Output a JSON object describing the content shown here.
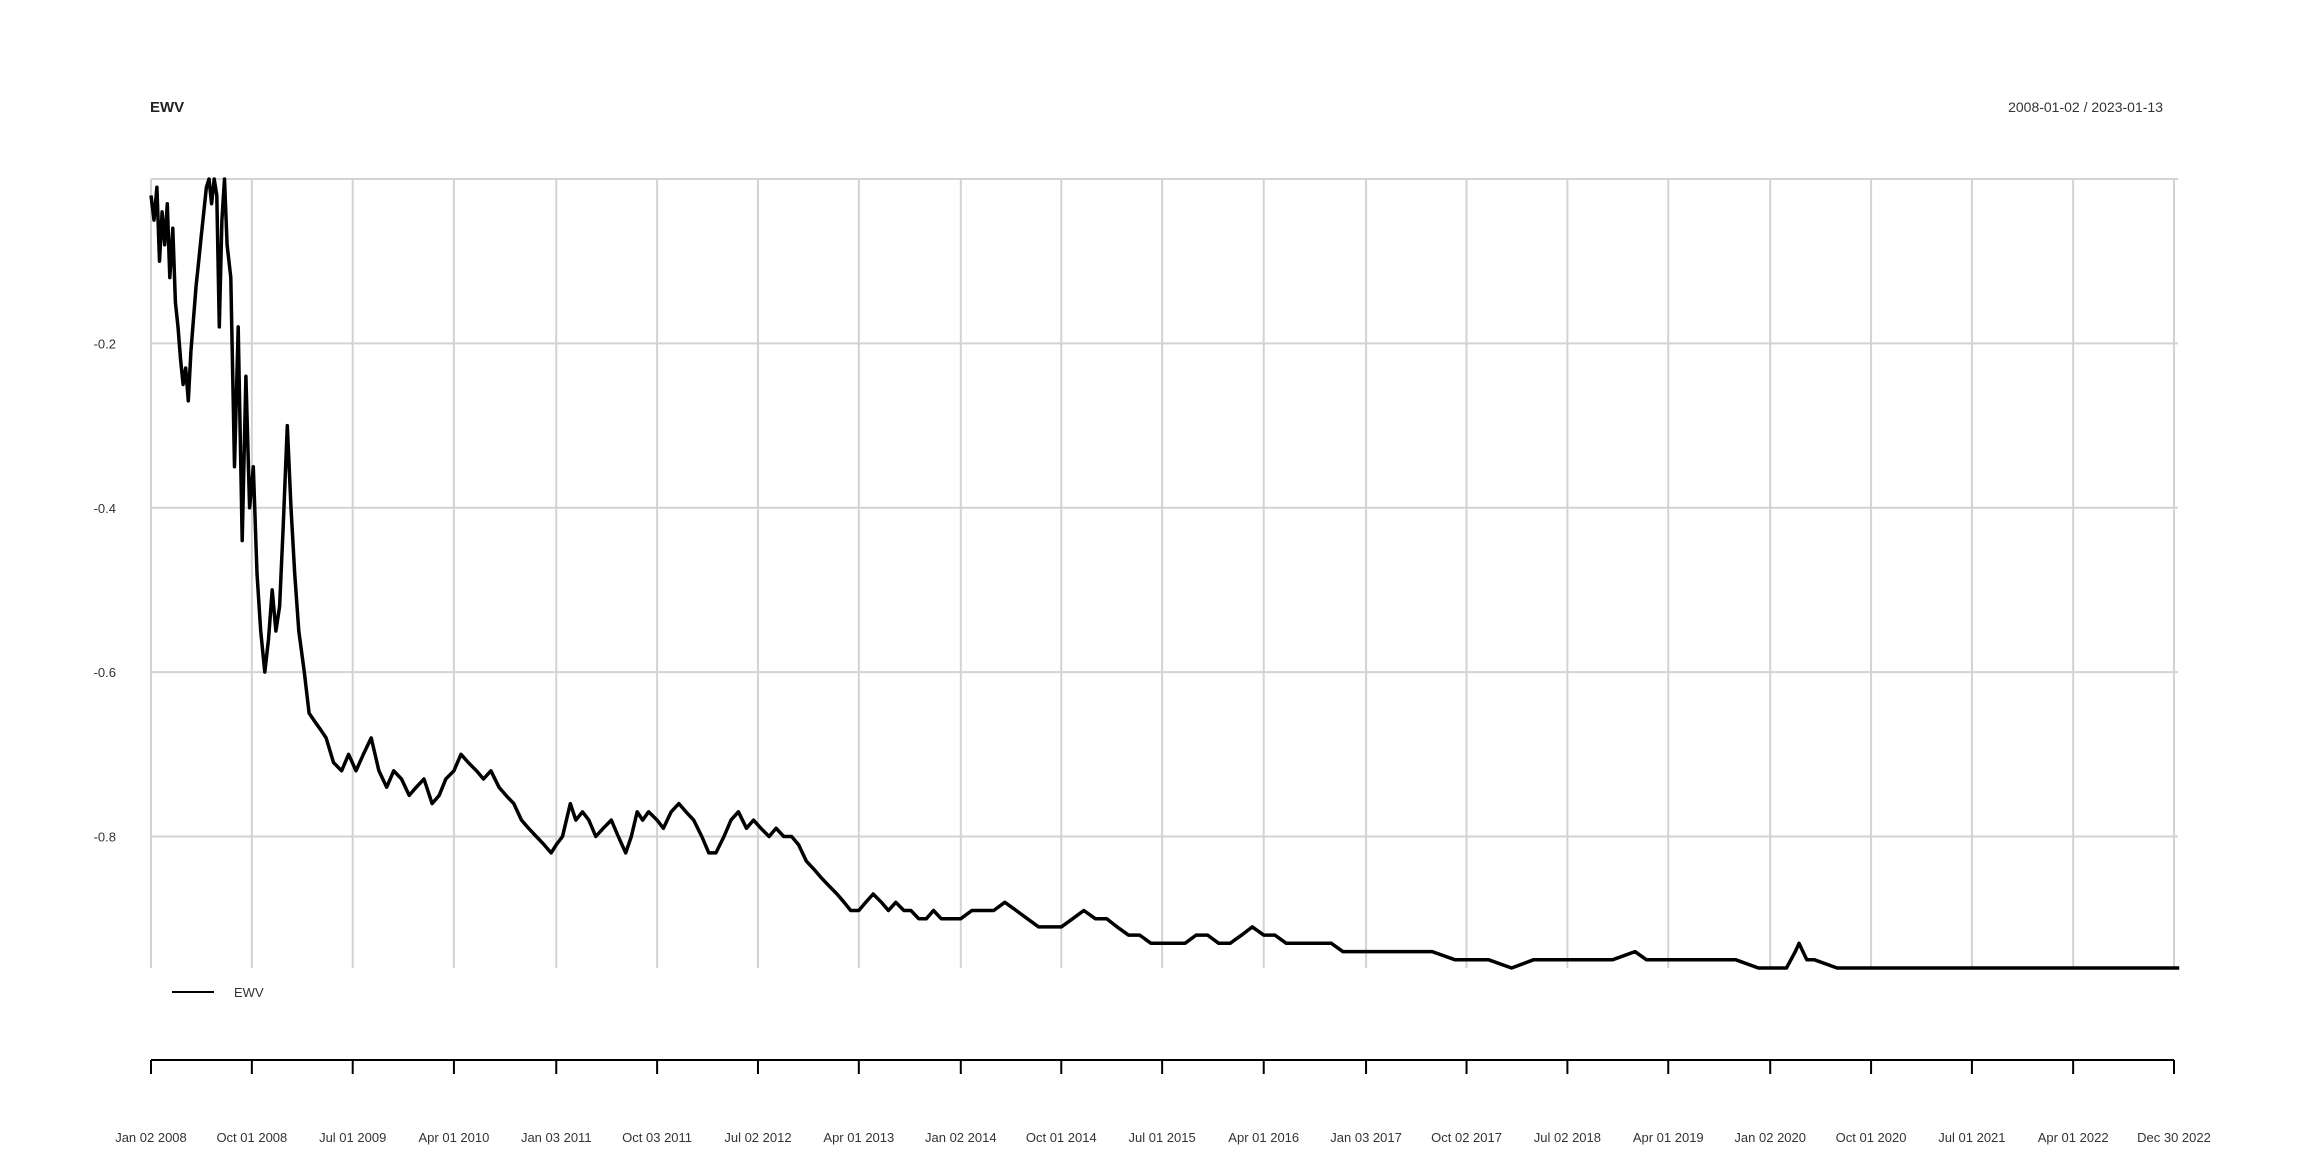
{
  "chart_data": {
    "type": "line",
    "title": "EWV",
    "date_range": "2008-01-02 / 2023-01-13",
    "x_type": "date",
    "x_ticks": [
      {
        "date": "2008-01-02",
        "label": "Jan 02 2008"
      },
      {
        "date": "2008-10-01",
        "label": "Oct 01 2008"
      },
      {
        "date": "2009-07-01",
        "label": "Jul 01 2009"
      },
      {
        "date": "2010-04-01",
        "label": "Apr 01 2010"
      },
      {
        "date": "2011-01-03",
        "label": "Jan 03 2011"
      },
      {
        "date": "2011-10-03",
        "label": "Oct 03 2011"
      },
      {
        "date": "2012-07-02",
        "label": "Jul 02 2012"
      },
      {
        "date": "2013-04-01",
        "label": "Apr 01 2013"
      },
      {
        "date": "2014-01-02",
        "label": "Jan 02 2014"
      },
      {
        "date": "2014-10-01",
        "label": "Oct 01 2014"
      },
      {
        "date": "2015-07-01",
        "label": "Jul 01 2015"
      },
      {
        "date": "2016-04-01",
        "label": "Apr 01 2016"
      },
      {
        "date": "2017-01-03",
        "label": "Jan 03 2017"
      },
      {
        "date": "2017-10-02",
        "label": "Oct 02 2017"
      },
      {
        "date": "2018-07-02",
        "label": "Jul 02 2018"
      },
      {
        "date": "2019-04-01",
        "label": "Apr 01 2019"
      },
      {
        "date": "2020-01-02",
        "label": "Jan 02 2020"
      },
      {
        "date": "2020-10-01",
        "label": "Oct 01 2020"
      },
      {
        "date": "2021-07-01",
        "label": "Jul 01 2021"
      },
      {
        "date": "2022-04-01",
        "label": "Apr 01 2022"
      },
      {
        "date": "2022-12-30",
        "label": "Dec 30 2022"
      }
    ],
    "y_ticks": [
      -0.2,
      -0.4,
      -0.6,
      -0.8
    ],
    "y_tick_labels": [
      "-0.2",
      "-0.4",
      "-0.6",
      "-0.8"
    ],
    "ylim": [
      -0.96,
      0.0
    ],
    "grid": true,
    "legend_position": "bottom-left",
    "series": [
      {
        "name": "EWV",
        "color": "#000000",
        "points": [
          [
            "2008-01-02",
            -0.02
          ],
          [
            "2008-01-10",
            -0.05
          ],
          [
            "2008-01-18",
            -0.01
          ],
          [
            "2008-01-25",
            -0.1
          ],
          [
            "2008-02-01",
            -0.04
          ],
          [
            "2008-02-08",
            -0.08
          ],
          [
            "2008-02-15",
            -0.03
          ],
          [
            "2008-02-22",
            -0.12
          ],
          [
            "2008-03-01",
            -0.06
          ],
          [
            "2008-03-08",
            -0.15
          ],
          [
            "2008-03-15",
            -0.18
          ],
          [
            "2008-03-22",
            -0.22
          ],
          [
            "2008-03-29",
            -0.25
          ],
          [
            "2008-04-05",
            -0.23
          ],
          [
            "2008-04-12",
            -0.27
          ],
          [
            "2008-04-19",
            -0.21
          ],
          [
            "2008-04-26",
            -0.17
          ],
          [
            "2008-05-03",
            -0.13
          ],
          [
            "2008-05-10",
            -0.1
          ],
          [
            "2008-05-17",
            -0.07
          ],
          [
            "2008-05-24",
            -0.04
          ],
          [
            "2008-05-31",
            -0.01
          ],
          [
            "2008-06-07",
            0.0
          ],
          [
            "2008-06-14",
            -0.03
          ],
          [
            "2008-06-21",
            0.0
          ],
          [
            "2008-06-28",
            -0.02
          ],
          [
            "2008-07-05",
            -0.18
          ],
          [
            "2008-07-12",
            -0.05
          ],
          [
            "2008-07-19",
            0.0
          ],
          [
            "2008-07-26",
            -0.08
          ],
          [
            "2008-08-05",
            -0.12
          ],
          [
            "2008-08-15",
            -0.35
          ],
          [
            "2008-08-25",
            -0.18
          ],
          [
            "2008-09-05",
            -0.44
          ],
          [
            "2008-09-15",
            -0.24
          ],
          [
            "2008-09-25",
            -0.4
          ],
          [
            "2008-10-05",
            -0.35
          ],
          [
            "2008-10-15",
            -0.48
          ],
          [
            "2008-10-25",
            -0.55
          ],
          [
            "2008-11-05",
            -0.6
          ],
          [
            "2008-11-15",
            -0.56
          ],
          [
            "2008-11-25",
            -0.5
          ],
          [
            "2008-12-05",
            -0.55
          ],
          [
            "2008-12-15",
            -0.52
          ],
          [
            "2008-12-25",
            -0.42
          ],
          [
            "2009-01-05",
            -0.3
          ],
          [
            "2009-01-15",
            -0.4
          ],
          [
            "2009-01-25",
            -0.48
          ],
          [
            "2009-02-05",
            -0.55
          ],
          [
            "2009-02-20",
            -0.6
          ],
          [
            "2009-03-05",
            -0.65
          ],
          [
            "2009-03-20",
            -0.66
          ],
          [
            "2009-04-05",
            -0.67
          ],
          [
            "2009-04-20",
            -0.68
          ],
          [
            "2009-05-10",
            -0.71
          ],
          [
            "2009-06-01",
            -0.72
          ],
          [
            "2009-06-20",
            -0.7
          ],
          [
            "2009-07-10",
            -0.72
          ],
          [
            "2009-07-30",
            -0.7
          ],
          [
            "2009-08-20",
            -0.68
          ],
          [
            "2009-09-10",
            -0.72
          ],
          [
            "2009-10-01",
            -0.74
          ],
          [
            "2009-10-20",
            -0.72
          ],
          [
            "2009-11-10",
            -0.73
          ],
          [
            "2009-12-01",
            -0.75
          ],
          [
            "2009-12-20",
            -0.74
          ],
          [
            "2010-01-10",
            -0.73
          ],
          [
            "2010-02-01",
            -0.76
          ],
          [
            "2010-02-20",
            -0.75
          ],
          [
            "2010-03-10",
            -0.73
          ],
          [
            "2010-04-01",
            -0.72
          ],
          [
            "2010-04-20",
            -0.7
          ],
          [
            "2010-05-10",
            -0.71
          ],
          [
            "2010-06-01",
            -0.72
          ],
          [
            "2010-06-20",
            -0.73
          ],
          [
            "2010-07-10",
            -0.72
          ],
          [
            "2010-08-01",
            -0.74
          ],
          [
            "2010-08-20",
            -0.75
          ],
          [
            "2010-09-10",
            -0.76
          ],
          [
            "2010-10-01",
            -0.78
          ],
          [
            "2010-10-20",
            -0.79
          ],
          [
            "2010-11-10",
            -0.8
          ],
          [
            "2010-12-01",
            -0.81
          ],
          [
            "2010-12-20",
            -0.82
          ],
          [
            "2011-01-03",
            -0.81
          ],
          [
            "2011-01-20",
            -0.8
          ],
          [
            "2011-02-10",
            -0.76
          ],
          [
            "2011-02-25",
            -0.78
          ],
          [
            "2011-03-15",
            -0.77
          ],
          [
            "2011-04-01",
            -0.78
          ],
          [
            "2011-04-20",
            -0.8
          ],
          [
            "2011-05-10",
            -0.79
          ],
          [
            "2011-06-01",
            -0.78
          ],
          [
            "2011-06-20",
            -0.8
          ],
          [
            "2011-07-10",
            -0.82
          ],
          [
            "2011-07-25",
            -0.8
          ],
          [
            "2011-08-10",
            -0.77
          ],
          [
            "2011-08-25",
            -0.78
          ],
          [
            "2011-09-10",
            -0.77
          ],
          [
            "2011-10-03",
            -0.78
          ],
          [
            "2011-10-20",
            -0.79
          ],
          [
            "2011-11-10",
            -0.77
          ],
          [
            "2011-12-01",
            -0.76
          ],
          [
            "2011-12-20",
            -0.77
          ],
          [
            "2012-01-10",
            -0.78
          ],
          [
            "2012-02-01",
            -0.8
          ],
          [
            "2012-02-20",
            -0.82
          ],
          [
            "2012-03-10",
            -0.82
          ],
          [
            "2012-04-01",
            -0.8
          ],
          [
            "2012-04-20",
            -0.78
          ],
          [
            "2012-05-10",
            -0.77
          ],
          [
            "2012-06-01",
            -0.79
          ],
          [
            "2012-06-20",
            -0.78
          ],
          [
            "2012-07-10",
            -0.79
          ],
          [
            "2012-08-01",
            -0.8
          ],
          [
            "2012-08-20",
            -0.79
          ],
          [
            "2012-09-10",
            -0.8
          ],
          [
            "2012-10-01",
            -0.8
          ],
          [
            "2012-10-20",
            -0.81
          ],
          [
            "2012-11-10",
            -0.83
          ],
          [
            "2012-12-01",
            -0.84
          ],
          [
            "2012-12-20",
            -0.85
          ],
          [
            "2013-01-10",
            -0.86
          ],
          [
            "2013-02-01",
            -0.87
          ],
          [
            "2013-02-20",
            -0.88
          ],
          [
            "2013-03-10",
            -0.89
          ],
          [
            "2013-04-01",
            -0.89
          ],
          [
            "2013-04-20",
            -0.88
          ],
          [
            "2013-05-10",
            -0.87
          ],
          [
            "2013-06-01",
            -0.88
          ],
          [
            "2013-06-20",
            -0.89
          ],
          [
            "2013-07-10",
            -0.88
          ],
          [
            "2013-08-01",
            -0.89
          ],
          [
            "2013-08-20",
            -0.89
          ],
          [
            "2013-09-10",
            -0.9
          ],
          [
            "2013-10-01",
            -0.9
          ],
          [
            "2013-10-20",
            -0.89
          ],
          [
            "2013-11-10",
            -0.9
          ],
          [
            "2013-12-01",
            -0.9
          ],
          [
            "2014-01-02",
            -0.9
          ],
          [
            "2014-02-01",
            -0.89
          ],
          [
            "2014-03-01",
            -0.89
          ],
          [
            "2014-04-01",
            -0.89
          ],
          [
            "2014-05-01",
            -0.88
          ],
          [
            "2014-06-01",
            -0.89
          ],
          [
            "2014-07-01",
            -0.9
          ],
          [
            "2014-08-01",
            -0.91
          ],
          [
            "2014-09-01",
            -0.91
          ],
          [
            "2014-10-01",
            -0.91
          ],
          [
            "2014-11-01",
            -0.9
          ],
          [
            "2014-12-01",
            -0.89
          ],
          [
            "2015-01-01",
            -0.9
          ],
          [
            "2015-02-01",
            -0.9
          ],
          [
            "2015-03-01",
            -0.91
          ],
          [
            "2015-04-01",
            -0.92
          ],
          [
            "2015-05-01",
            -0.92
          ],
          [
            "2015-06-01",
            -0.93
          ],
          [
            "2015-07-01",
            -0.93
          ],
          [
            "2015-08-01",
            -0.93
          ],
          [
            "2015-09-01",
            -0.93
          ],
          [
            "2015-10-01",
            -0.92
          ],
          [
            "2015-11-01",
            -0.92
          ],
          [
            "2015-12-01",
            -0.93
          ],
          [
            "2016-01-01",
            -0.93
          ],
          [
            "2016-02-01",
            -0.92
          ],
          [
            "2016-03-01",
            -0.91
          ],
          [
            "2016-04-01",
            -0.92
          ],
          [
            "2016-05-01",
            -0.92
          ],
          [
            "2016-06-01",
            -0.93
          ],
          [
            "2016-07-01",
            -0.93
          ],
          [
            "2016-08-01",
            -0.93
          ],
          [
            "2016-09-01",
            -0.93
          ],
          [
            "2016-10-01",
            -0.93
          ],
          [
            "2016-11-01",
            -0.94
          ],
          [
            "2016-12-01",
            -0.94
          ],
          [
            "2017-01-03",
            -0.94
          ],
          [
            "2017-03-01",
            -0.94
          ],
          [
            "2017-05-01",
            -0.94
          ],
          [
            "2017-07-01",
            -0.94
          ],
          [
            "2017-09-01",
            -0.95
          ],
          [
            "2017-10-02",
            -0.95
          ],
          [
            "2017-12-01",
            -0.95
          ],
          [
            "2018-02-01",
            -0.96
          ],
          [
            "2018-04-01",
            -0.95
          ],
          [
            "2018-06-01",
            -0.95
          ],
          [
            "2018-07-02",
            -0.95
          ],
          [
            "2018-09-01",
            -0.95
          ],
          [
            "2018-11-01",
            -0.95
          ],
          [
            "2019-01-01",
            -0.94
          ],
          [
            "2019-02-01",
            -0.95
          ],
          [
            "2019-04-01",
            -0.95
          ],
          [
            "2019-06-01",
            -0.95
          ],
          [
            "2019-08-01",
            -0.95
          ],
          [
            "2019-10-01",
            -0.95
          ],
          [
            "2019-12-01",
            -0.96
          ],
          [
            "2020-01-02",
            -0.96
          ],
          [
            "2020-02-15",
            -0.96
          ],
          [
            "2020-03-10",
            -0.94
          ],
          [
            "2020-03-20",
            -0.93
          ],
          [
            "2020-04-10",
            -0.95
          ],
          [
            "2020-05-01",
            -0.95
          ],
          [
            "2020-07-01",
            -0.96
          ],
          [
            "2020-10-01",
            -0.96
          ],
          [
            "2020-12-01",
            -0.96
          ],
          [
            "2021-03-01",
            -0.97
          ],
          [
            "2021-07-01",
            -0.97
          ],
          [
            "2021-10-01",
            -0.97
          ],
          [
            "2022-01-01",
            -0.97
          ],
          [
            "2022-04-01",
            -0.97
          ],
          [
            "2022-06-01",
            -0.96
          ],
          [
            "2022-08-01",
            -0.96
          ],
          [
            "2022-10-01",
            -0.96
          ],
          [
            "2022-11-15",
            -0.96
          ],
          [
            "2022-12-30",
            -0.96
          ],
          [
            "2023-01-13",
            -0.96
          ]
        ]
      }
    ]
  }
}
